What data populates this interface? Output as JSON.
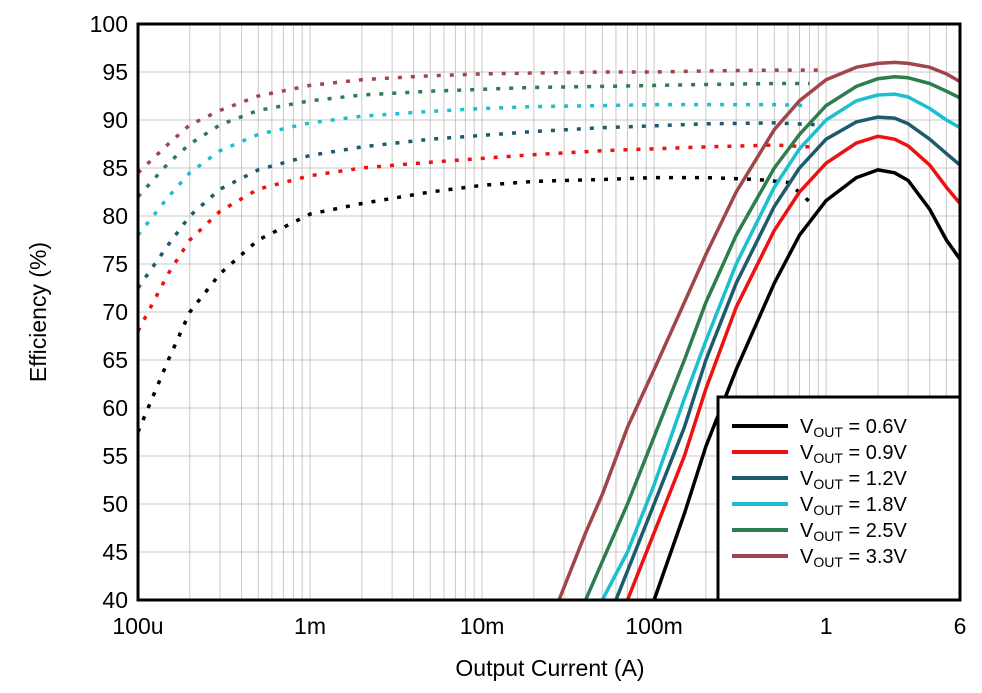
{
  "chart_data": {
    "type": "line",
    "xlabel": "Output Current (A)",
    "ylabel": "Efficiency (%)",
    "x_scale": "log",
    "xlim": [
      0.0001,
      6
    ],
    "ylim": [
      40,
      100
    ],
    "x_ticks": [
      {
        "value": 0.0001,
        "label": "100u"
      },
      {
        "value": 0.001,
        "label": "1m"
      },
      {
        "value": 0.01,
        "label": "10m"
      },
      {
        "value": 0.1,
        "label": "100m"
      },
      {
        "value": 1,
        "label": "1"
      },
      {
        "value": 6,
        "label": "6"
      }
    ],
    "y_ticks": [
      40,
      45,
      50,
      55,
      60,
      65,
      70,
      75,
      80,
      85,
      90,
      95,
      100
    ],
    "grid": true,
    "legend": {
      "placement": "bottom-right",
      "entries": [
        {
          "prefix": "V",
          "sub": "OUT",
          "suffix": " = 0.6V",
          "color": "#000000"
        },
        {
          "prefix": "V",
          "sub": "OUT",
          "suffix": " = 0.9V",
          "color": "#ee1111"
        },
        {
          "prefix": "V",
          "sub": "OUT",
          "suffix": " = 1.2V",
          "color": "#1d5a6e"
        },
        {
          "prefix": "V",
          "sub": "OUT",
          "suffix": " = 1.8V",
          "color": "#1bbfcf"
        },
        {
          "prefix": "V",
          "sub": "OUT",
          "suffix": " = 2.5V",
          "color": "#2e7d4f"
        },
        {
          "prefix": "V",
          "sub": "OUT",
          "suffix": " = 3.3V",
          "color": "#a0454a"
        }
      ]
    },
    "series": [
      {
        "name": "VOUT = 0.6V",
        "color": "#000000",
        "dotted": [
          [
            0.0001,
            57.5
          ],
          [
            0.00015,
            65
          ],
          [
            0.0002,
            70
          ],
          [
            0.0003,
            74
          ],
          [
            0.0005,
            77.5
          ],
          [
            0.001,
            80.2
          ],
          [
            0.002,
            81.3
          ],
          [
            0.005,
            82.5
          ],
          [
            0.01,
            83.2
          ],
          [
            0.02,
            83.6
          ],
          [
            0.05,
            83.8
          ],
          [
            0.1,
            84.0
          ],
          [
            0.2,
            84.0
          ],
          [
            0.4,
            83.8
          ],
          [
            0.6,
            83.5
          ],
          [
            0.8,
            81.5
          ]
        ],
        "solid": [
          [
            0.1,
            40
          ],
          [
            0.15,
            49
          ],
          [
            0.2,
            56
          ],
          [
            0.3,
            64
          ],
          [
            0.5,
            73
          ],
          [
            0.7,
            78
          ],
          [
            1,
            81.6
          ],
          [
            1.5,
            84.0
          ],
          [
            2,
            84.8
          ],
          [
            2.5,
            84.5
          ],
          [
            3,
            83.7
          ],
          [
            4,
            80.7
          ],
          [
            5,
            77.5
          ],
          [
            6,
            75.5
          ]
        ]
      },
      {
        "name": "VOUT = 0.9V",
        "color": "#ee1111",
        "dotted": [
          [
            0.0001,
            68
          ],
          [
            0.00015,
            74
          ],
          [
            0.0002,
            77.5
          ],
          [
            0.0003,
            80.5
          ],
          [
            0.0005,
            82.8
          ],
          [
            0.001,
            84.2
          ],
          [
            0.002,
            85.0
          ],
          [
            0.005,
            85.6
          ],
          [
            0.01,
            86.0
          ],
          [
            0.02,
            86.4
          ],
          [
            0.05,
            86.8
          ],
          [
            0.1,
            87.0
          ],
          [
            0.2,
            87.2
          ],
          [
            0.5,
            87.4
          ],
          [
            0.8,
            87.2
          ]
        ],
        "solid": [
          [
            0.07,
            40
          ],
          [
            0.1,
            47
          ],
          [
            0.15,
            55
          ],
          [
            0.2,
            62
          ],
          [
            0.3,
            70.5
          ],
          [
            0.5,
            78.5
          ],
          [
            0.7,
            82.5
          ],
          [
            1,
            85.5
          ],
          [
            1.5,
            87.6
          ],
          [
            2,
            88.3
          ],
          [
            2.5,
            88.0
          ],
          [
            3,
            87.3
          ],
          [
            4,
            85.3
          ],
          [
            5,
            83.0
          ],
          [
            6,
            81.3
          ]
        ]
      },
      {
        "name": "VOUT = 1.2V",
        "color": "#1d5a6e",
        "dotted": [
          [
            0.0001,
            72.5
          ],
          [
            0.00015,
            77
          ],
          [
            0.0002,
            80
          ],
          [
            0.0003,
            82.8
          ],
          [
            0.0005,
            84.8
          ],
          [
            0.001,
            86.3
          ],
          [
            0.002,
            87.2
          ],
          [
            0.005,
            88.0
          ],
          [
            0.01,
            88.4
          ],
          [
            0.02,
            88.8
          ],
          [
            0.05,
            89.2
          ],
          [
            0.1,
            89.4
          ],
          [
            0.2,
            89.6
          ],
          [
            0.5,
            89.7
          ],
          [
            0.9,
            89.5
          ]
        ],
        "solid": [
          [
            0.06,
            40
          ],
          [
            0.1,
            50
          ],
          [
            0.15,
            58
          ],
          [
            0.2,
            65
          ],
          [
            0.3,
            73
          ],
          [
            0.5,
            81
          ],
          [
            0.7,
            85
          ],
          [
            1,
            88.0
          ],
          [
            1.5,
            89.8
          ],
          [
            2,
            90.3
          ],
          [
            2.5,
            90.2
          ],
          [
            3,
            89.6
          ],
          [
            4,
            88.0
          ],
          [
            5,
            86.5
          ],
          [
            6,
            85.3
          ]
        ]
      },
      {
        "name": "VOUT = 1.8V",
        "color": "#1bbfcf",
        "dotted": [
          [
            0.0001,
            78
          ],
          [
            0.00015,
            82
          ],
          [
            0.0002,
            84.5
          ],
          [
            0.0003,
            86.8
          ],
          [
            0.0005,
            88.5
          ],
          [
            0.001,
            89.7
          ],
          [
            0.002,
            90.4
          ],
          [
            0.005,
            90.9
          ],
          [
            0.01,
            91.2
          ],
          [
            0.02,
            91.4
          ],
          [
            0.05,
            91.5
          ],
          [
            0.1,
            91.6
          ],
          [
            0.2,
            91.6
          ],
          [
            0.5,
            91.6
          ],
          [
            0.8,
            91.5
          ]
        ],
        "solid": [
          [
            0.05,
            40
          ],
          [
            0.07,
            45
          ],
          [
            0.1,
            52
          ],
          [
            0.15,
            61
          ],
          [
            0.2,
            67
          ],
          [
            0.3,
            75
          ],
          [
            0.5,
            83
          ],
          [
            0.7,
            87
          ],
          [
            1,
            90.0
          ],
          [
            1.5,
            92.0
          ],
          [
            2,
            92.6
          ],
          [
            2.5,
            92.7
          ],
          [
            3,
            92.4
          ],
          [
            4,
            91.2
          ],
          [
            5,
            90.0
          ],
          [
            6,
            89.2
          ]
        ]
      },
      {
        "name": "VOUT = 2.5V",
        "color": "#2e7d4f",
        "dotted": [
          [
            0.0001,
            82
          ],
          [
            0.00015,
            85.5
          ],
          [
            0.0002,
            87.5
          ],
          [
            0.0003,
            89.5
          ],
          [
            0.0005,
            91
          ],
          [
            0.001,
            92.0
          ],
          [
            0.002,
            92.6
          ],
          [
            0.005,
            93.0
          ],
          [
            0.01,
            93.2
          ],
          [
            0.02,
            93.4
          ],
          [
            0.05,
            93.5
          ],
          [
            0.1,
            93.6
          ],
          [
            0.2,
            93.7
          ],
          [
            0.5,
            93.8
          ],
          [
            0.8,
            93.8
          ]
        ],
        "solid": [
          [
            0.04,
            40
          ],
          [
            0.05,
            44
          ],
          [
            0.07,
            50
          ],
          [
            0.1,
            57
          ],
          [
            0.15,
            65
          ],
          [
            0.2,
            71
          ],
          [
            0.3,
            78
          ],
          [
            0.5,
            85
          ],
          [
            0.7,
            88.5
          ],
          [
            1,
            91.5
          ],
          [
            1.5,
            93.5
          ],
          [
            2,
            94.3
          ],
          [
            2.5,
            94.5
          ],
          [
            3,
            94.4
          ],
          [
            4,
            93.8
          ],
          [
            5,
            93.0
          ],
          [
            6,
            92.3
          ]
        ]
      },
      {
        "name": "VOUT = 3.3V",
        "color": "#a0454a",
        "dotted": [
          [
            0.0001,
            84.5
          ],
          [
            0.00015,
            87.5
          ],
          [
            0.0002,
            89.5
          ],
          [
            0.0003,
            91
          ],
          [
            0.0005,
            92.5
          ],
          [
            0.001,
            93.6
          ],
          [
            0.002,
            94.2
          ],
          [
            0.005,
            94.6
          ],
          [
            0.01,
            94.8
          ],
          [
            0.02,
            94.9
          ],
          [
            0.05,
            95.0
          ],
          [
            0.1,
            95.0
          ],
          [
            0.2,
            95.1
          ],
          [
            0.5,
            95.2
          ],
          [
            1,
            95.2
          ]
        ],
        "solid": [
          [
            0.028,
            40
          ],
          [
            0.04,
            47
          ],
          [
            0.05,
            51
          ],
          [
            0.07,
            58
          ],
          [
            0.1,
            64
          ],
          [
            0.15,
            71
          ],
          [
            0.2,
            76
          ],
          [
            0.3,
            82.5
          ],
          [
            0.5,
            89
          ],
          [
            0.7,
            92
          ],
          [
            1,
            94.2
          ],
          [
            1.5,
            95.5
          ],
          [
            2,
            95.9
          ],
          [
            2.5,
            96.0
          ],
          [
            3,
            95.9
          ],
          [
            4,
            95.5
          ],
          [
            5,
            94.8
          ],
          [
            6,
            94.0
          ]
        ]
      }
    ]
  }
}
